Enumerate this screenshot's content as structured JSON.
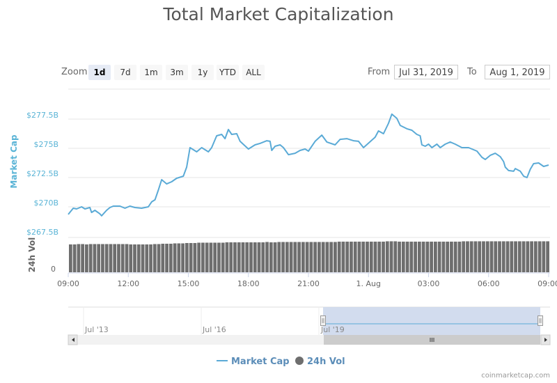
{
  "title": "Total Market Capitalization",
  "range_selector": {
    "zoom_label": "Zoom",
    "buttons": [
      "1d",
      "7d",
      "1m",
      "3m",
      "1y",
      "YTD",
      "ALL"
    ],
    "selected": "1d",
    "from_label": "From",
    "from_value": "Jul 31, 2019",
    "to_label": "To",
    "to_value": "Aug 1, 2019"
  },
  "credit": "coinmarketcap.com",
  "colors": {
    "market_cap": "#5aaad6",
    "volume": "#6e6e6e",
    "navigator_mask": "#cdd8ec",
    "axis_text": "#5ab4d6"
  },
  "chart_data": {
    "type": "line",
    "title": "Total Market Capitalization",
    "xlabel": "",
    "ylabel": "Market Cap",
    "y_unit": "USD billions",
    "ylim": [
      267.5,
      277.5
    ],
    "y_ticks": [
      "$267.5B",
      "$270B",
      "$272.5B",
      "$275B",
      "$277.5B"
    ],
    "x_ticks": [
      "09:00",
      "12:00",
      "15:00",
      "18:00",
      "21:00",
      "1. Aug",
      "03:00",
      "06:00",
      "09:00"
    ],
    "grid": true,
    "legend_position": "bottom",
    "series": [
      {
        "name": "Market Cap",
        "type": "line",
        "x": [
          "07-31 09:00",
          "07-31 09:15",
          "07-31 09:25",
          "07-31 09:40",
          "07-31 09:50",
          "07-31 10:05",
          "07-31 10:10",
          "07-31 10:20",
          "07-31 10:35",
          "07-31 10:40",
          "07-31 10:55",
          "07-31 11:05",
          "07-31 11:15",
          "07-31 11:35",
          "07-31 11:50",
          "07-31 12:05",
          "07-31 12:20",
          "07-31 12:40",
          "07-31 13:00",
          "07-31 13:10",
          "07-31 13:20",
          "07-31 13:30",
          "07-31 13:40",
          "07-31 13:55",
          "07-31 14:10",
          "07-31 14:25",
          "07-31 14:45",
          "07-31 14:55",
          "07-31 15:05",
          "07-31 15:25",
          "07-31 15:40",
          "07-31 16:00",
          "07-31 16:10",
          "07-31 16:25",
          "07-31 16:40",
          "07-31 16:50",
          "07-31 17:00",
          "07-31 17:10",
          "07-31 17:25",
          "07-31 17:35",
          "07-31 18:00",
          "07-31 18:20",
          "07-31 18:35",
          "07-31 18:55",
          "07-31 19:05",
          "07-31 19:10",
          "07-31 19:20",
          "07-31 19:35",
          "07-31 19:45",
          "07-31 20:00",
          "07-31 20:20",
          "07-31 20:35",
          "07-31 20:50",
          "07-31 21:00",
          "07-31 21:20",
          "07-31 21:40",
          "07-31 21:55",
          "07-31 22:20",
          "07-31 22:35",
          "07-31 22:55",
          "07-31 23:15",
          "07-31 23:30",
          "07-31 23:45",
          "08-01 00:20",
          "08-01 00:30",
          "08-01 00:45",
          "08-01 01:00",
          "08-01 01:10",
          "08-01 01:25",
          "08-01 01:35",
          "08-01 01:55",
          "08-01 02:10",
          "08-01 02:25",
          "08-01 02:35",
          "08-01 02:40",
          "08-01 02:50",
          "08-01 03:00",
          "08-01 03:10",
          "08-01 03:25",
          "08-01 03:35",
          "08-01 03:50",
          "08-01 04:05",
          "08-01 04:20",
          "08-01 04:40",
          "08-01 05:00",
          "08-01 05:25",
          "08-01 05:40",
          "08-01 05:50",
          "08-01 06:05",
          "08-01 06:20",
          "08-01 06:35",
          "08-01 06:45",
          "08-01 06:50",
          "08-01 07:00",
          "08-01 07:15",
          "08-01 07:20",
          "08-01 07:35",
          "08-01 07:45",
          "08-01 07:55",
          "08-01 08:05",
          "08-01 08:15",
          "08-01 08:30",
          "08-01 08:45",
          "08-01 09:00"
        ],
        "values": [
          269.35,
          269.88,
          269.82,
          270.0,
          269.82,
          269.94,
          269.52,
          269.7,
          269.4,
          269.23,
          269.7,
          269.94,
          270.06,
          270.06,
          269.88,
          270.06,
          269.94,
          269.88,
          270.0,
          270.42,
          270.6,
          271.43,
          272.32,
          271.96,
          272.14,
          272.44,
          272.62,
          273.39,
          275.06,
          274.7,
          275.06,
          274.7,
          275.06,
          276.07,
          276.19,
          275.83,
          276.61,
          276.19,
          276.25,
          275.6,
          274.94,
          275.3,
          275.42,
          275.65,
          275.6,
          274.82,
          275.18,
          275.3,
          275.06,
          274.46,
          274.58,
          274.82,
          274.94,
          274.76,
          275.6,
          276.13,
          275.54,
          275.3,
          275.77,
          275.83,
          275.65,
          275.6,
          275.06,
          275.95,
          276.49,
          276.25,
          277.14,
          277.92,
          277.56,
          276.96,
          276.67,
          276.55,
          276.19,
          276.07,
          275.3,
          275.18,
          275.36,
          275.06,
          275.36,
          275.06,
          275.36,
          275.54,
          275.36,
          275.06,
          275.06,
          274.76,
          274.23,
          274.05,
          274.4,
          274.58,
          274.29,
          273.87,
          273.39,
          273.1,
          273.04,
          273.27,
          273.04,
          272.62,
          272.5,
          273.21,
          273.69,
          273.75,
          273.45,
          273.57
        ]
      },
      {
        "name": "24h Vol",
        "type": "column",
        "axis_label": "24h Vol",
        "axis_ticks": [
          "0"
        ],
        "values_relative_to_axis_max": [
          0.8,
          0.8,
          0.81,
          0.81,
          0.8,
          0.81,
          0.81,
          0.81,
          0.81,
          0.81,
          0.81,
          0.81,
          0.81,
          0.81,
          0.81,
          0.8,
          0.8,
          0.8,
          0.8,
          0.8,
          0.8,
          0.81,
          0.81,
          0.82,
          0.82,
          0.82,
          0.83,
          0.83,
          0.83,
          0.84,
          0.84,
          0.84,
          0.85,
          0.85,
          0.85,
          0.85,
          0.85,
          0.85,
          0.85,
          0.86,
          0.86,
          0.86,
          0.86,
          0.86,
          0.86,
          0.86,
          0.86,
          0.86,
          0.86,
          0.87,
          0.86,
          0.86,
          0.87,
          0.87,
          0.87,
          0.87,
          0.87,
          0.87,
          0.87,
          0.87,
          0.87,
          0.87,
          0.87,
          0.87,
          0.87,
          0.87,
          0.87,
          0.88,
          0.88,
          0.88,
          0.88,
          0.88,
          0.88,
          0.88,
          0.88,
          0.88,
          0.88,
          0.88,
          0.88,
          0.89,
          0.89,
          0.89,
          0.88,
          0.88,
          0.88,
          0.88,
          0.88,
          0.88,
          0.88,
          0.88,
          0.88,
          0.88,
          0.88,
          0.88,
          0.88,
          0.88,
          0.88,
          0.88,
          0.89,
          0.89,
          0.89,
          0.89,
          0.89,
          0.89,
          0.89,
          0.89,
          0.89,
          0.89,
          0.89,
          0.89,
          0.89,
          0.89,
          0.89,
          0.89,
          0.89,
          0.89,
          0.89,
          0.89,
          0.89,
          0.89
        ]
      }
    ],
    "navigator": {
      "x_ticks": [
        "Jul '13",
        "Jul '16",
        "Jul '19"
      ],
      "selected_range": [
        "Jul 31, 2019",
        "Aug 1, 2019"
      ]
    }
  }
}
